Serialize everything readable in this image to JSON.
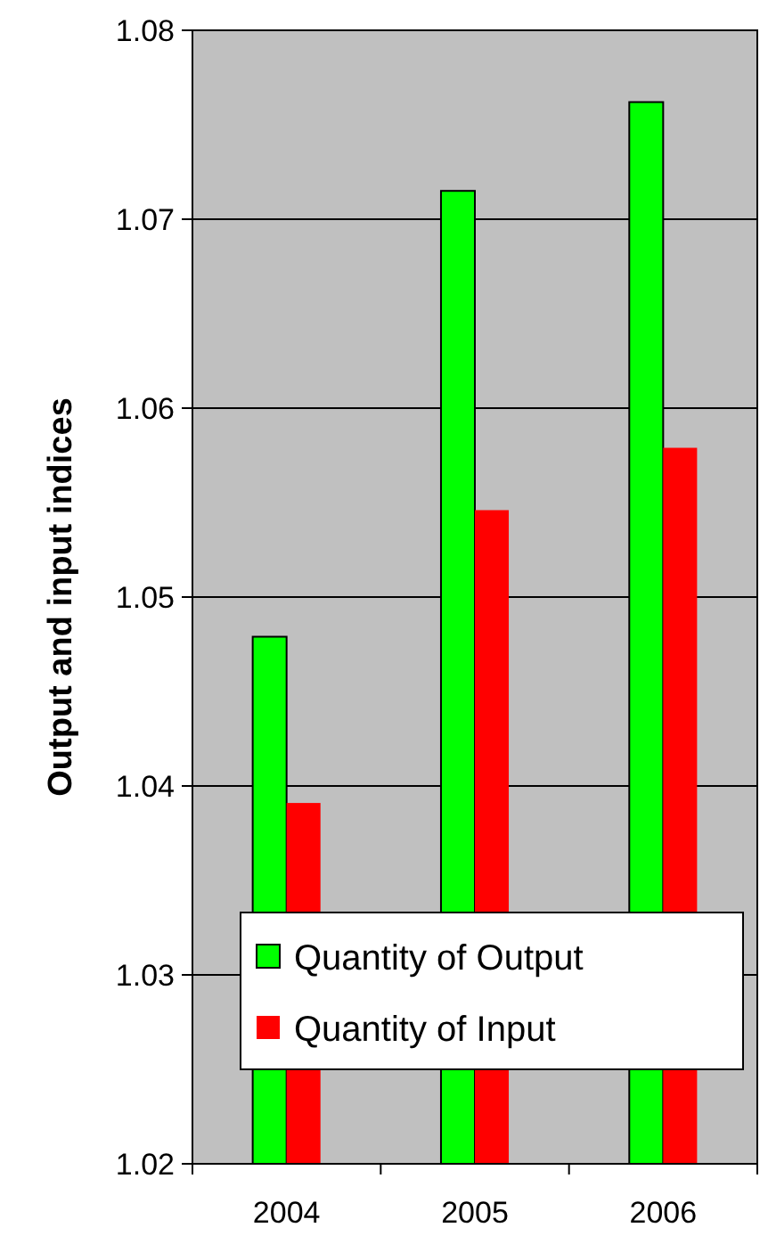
{
  "chart_data": {
    "type": "bar",
    "ylabel": "Output and input indices",
    "categories": [
      "2004",
      "2005",
      "2006"
    ],
    "series": [
      {
        "name": "Quantity of Output",
        "color": "#00ff00",
        "values": [
          1.0479,
          1.0715,
          1.0762
        ]
      },
      {
        "name": "Quantity of Input",
        "color": "#ff0000",
        "values": [
          1.0391,
          1.0546,
          1.0579
        ]
      }
    ],
    "ylim": [
      1.02,
      1.08
    ],
    "yticks": [
      {
        "value": 1.02,
        "label": "1.02"
      },
      {
        "value": 1.03,
        "label": "1.03"
      },
      {
        "value": 1.04,
        "label": "1.04"
      },
      {
        "value": 1.05,
        "label": "1.05"
      },
      {
        "value": 1.06,
        "label": "1.06"
      },
      {
        "value": 1.07,
        "label": "1.07"
      },
      {
        "value": 1.08,
        "label": "1.08"
      }
    ],
    "grid": "y",
    "legend": "bottom"
  }
}
